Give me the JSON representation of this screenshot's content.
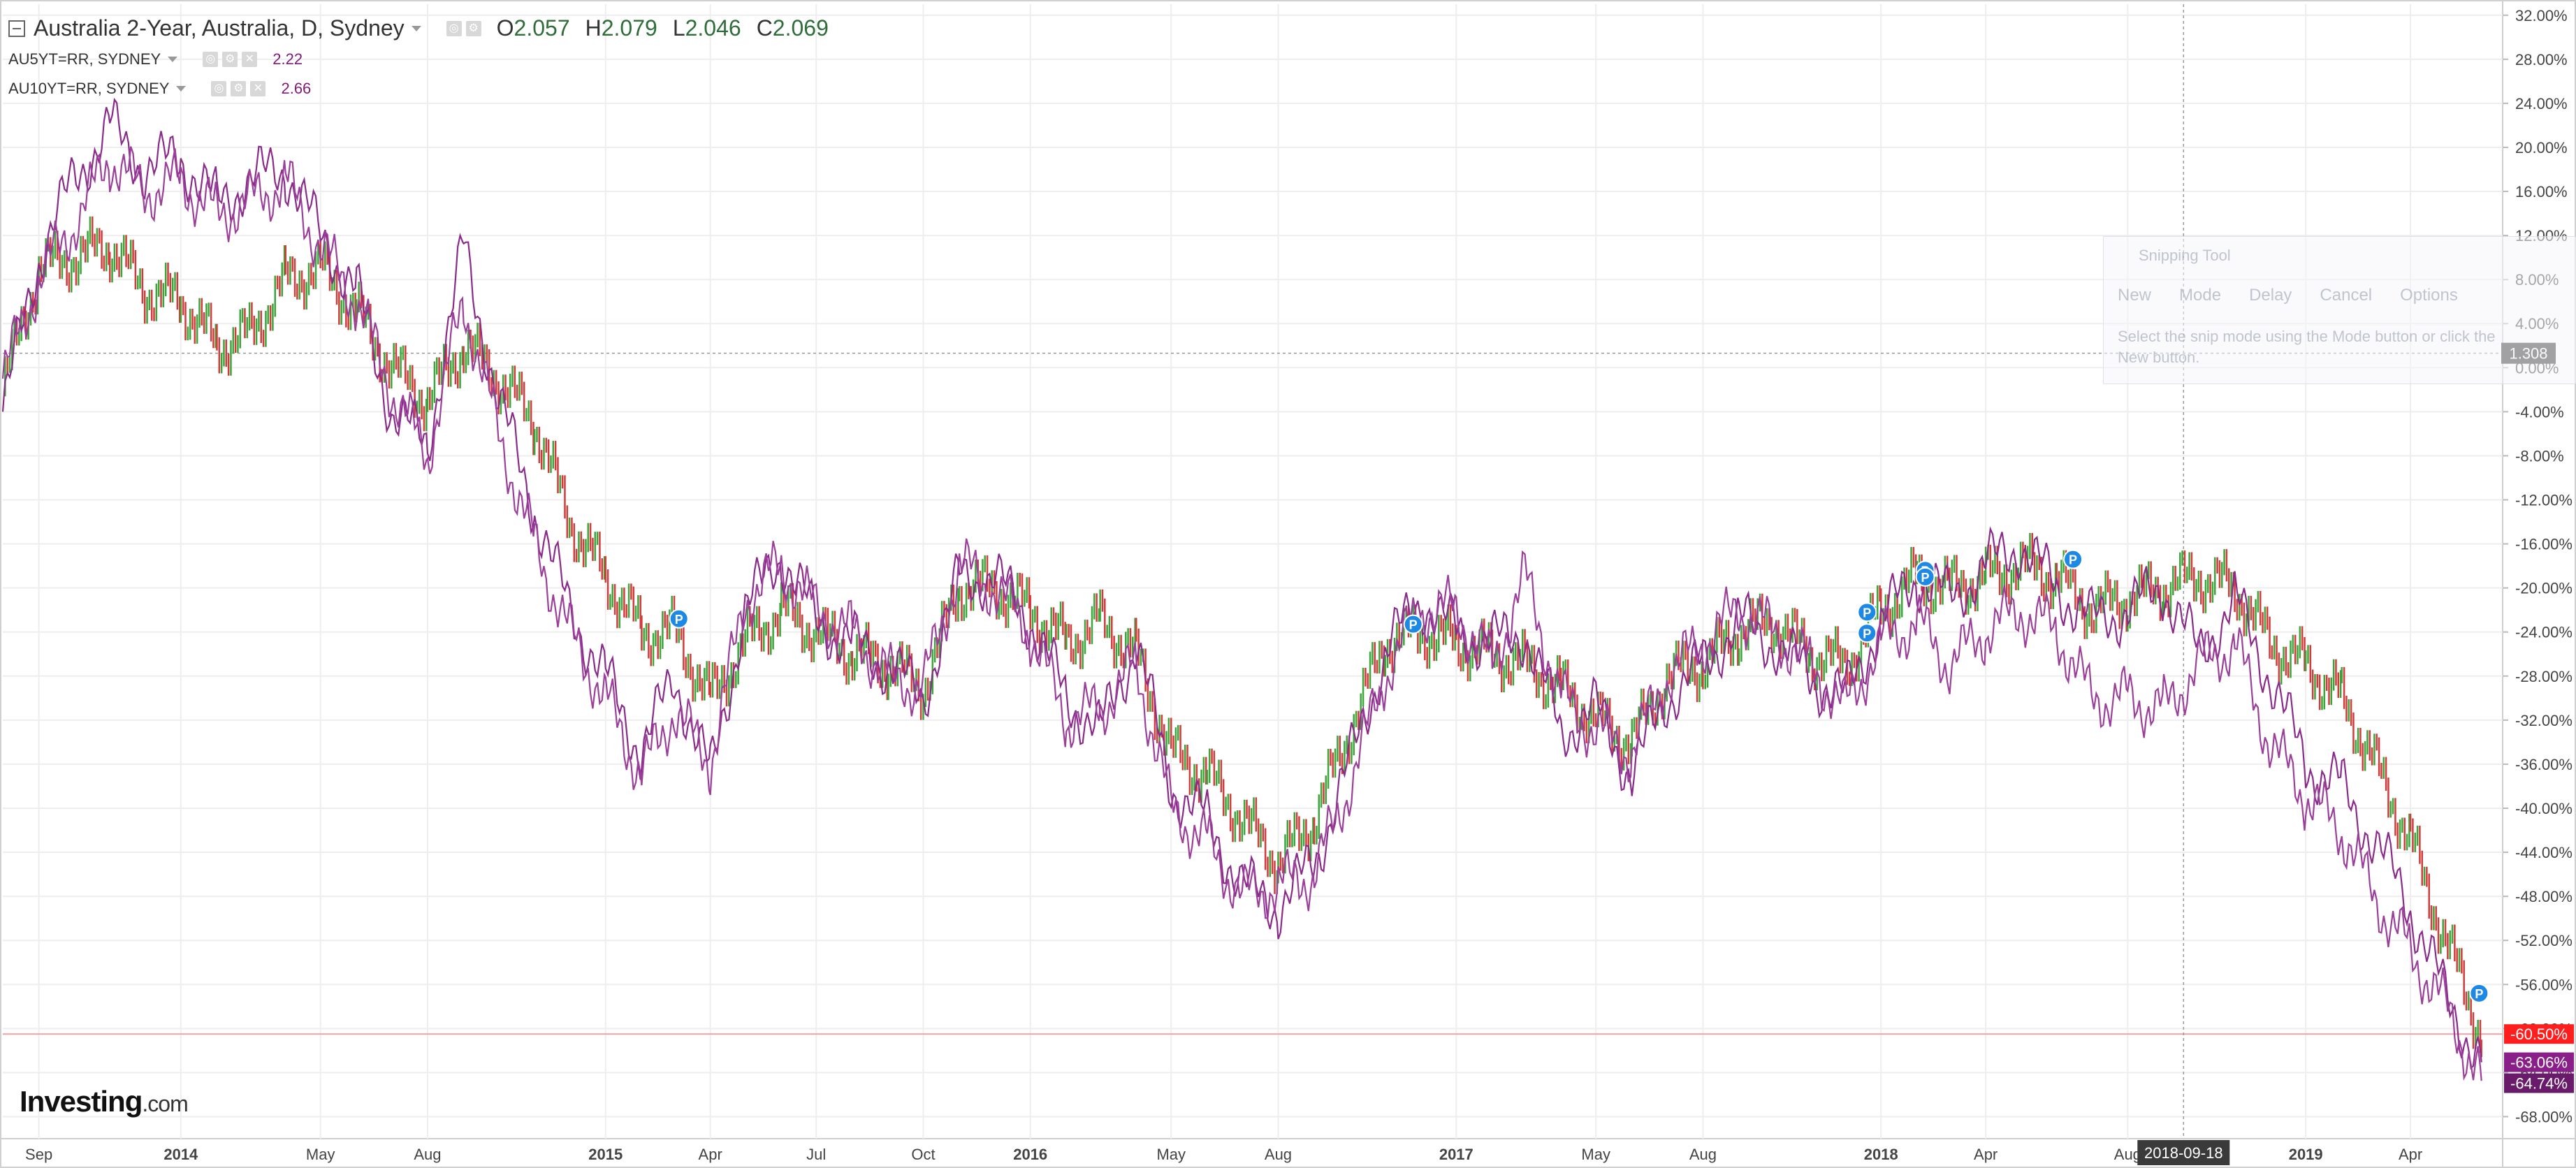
{
  "chart_data": {
    "type": "line",
    "title": "Australia 2-Year, Australia, D, Sydney",
    "ohlc": {
      "open_label": "O",
      "open": "2.057",
      "high_label": "H",
      "high": "2.079",
      "low_label": "L",
      "low": "2.046",
      "close_label": "C",
      "close": "2.069"
    },
    "compare": [
      {
        "name": "AU5YT=RR, SYDNEY",
        "value": "2.22"
      },
      {
        "name": "AU10YT=RR, SYDNEY",
        "value": "2.66"
      }
    ],
    "x_labels": [
      {
        "text": "Sep",
        "bold": false
      },
      {
        "text": "2014",
        "bold": true
      },
      {
        "text": "May",
        "bold": false
      },
      {
        "text": "Aug",
        "bold": false
      },
      {
        "text": "2015",
        "bold": true
      },
      {
        "text": "Apr",
        "bold": false
      },
      {
        "text": "Jul",
        "bold": false
      },
      {
        "text": "Oct",
        "bold": false
      },
      {
        "text": "2016",
        "bold": true
      },
      {
        "text": "May",
        "bold": false
      },
      {
        "text": "Aug",
        "bold": false
      },
      {
        "text": "2017",
        "bold": true
      },
      {
        "text": "May",
        "bold": false
      },
      {
        "text": "Aug",
        "bold": false
      },
      {
        "text": "2018",
        "bold": true
      },
      {
        "text": "Apr",
        "bold": false
      },
      {
        "text": "Aug",
        "bold": false
      },
      {
        "text": "2019",
        "bold": true
      },
      {
        "text": "Apr",
        "bold": false
      }
    ],
    "y_ticks": [
      "32.00%",
      "28.00%",
      "24.00%",
      "20.00%",
      "16.00%",
      "12.00%",
      "8.00%",
      "4.00%",
      "0.00%",
      "-4.00%",
      "-8.00%",
      "-12.00%",
      "-16.00%",
      "-20.00%",
      "-24.00%",
      "-28.00%",
      "-32.00%",
      "-36.00%",
      "-40.00%",
      "-44.00%",
      "-48.00%",
      "-52.00%",
      "-56.00%",
      "-60.00%",
      "-64.00%",
      "-68.00%"
    ],
    "ylim": [
      -70,
      33
    ],
    "x_range": [
      "2013-08-01",
      "2019-06-15"
    ],
    "crosshair": {
      "date": "2018-09-18",
      "date_label": "2018-09-18",
      "value": 1.308,
      "value_label": "1.308"
    },
    "price_labels": [
      {
        "text": "-60.50%",
        "value": -60.5,
        "color": "#ff1e1e"
      },
      {
        "text": "-63.06%",
        "value": -63.06,
        "color": "#8a1f8a"
      },
      {
        "text": "-64.74%",
        "value": -64.74,
        "color": "#6a1a6a"
      }
    ],
    "reference_line": {
      "value": -60.5,
      "color": "#f4a0a0"
    },
    "series": [
      {
        "name": "AU5YT=RR, SYDNEY",
        "color": "#8a2a8a",
        "points": [
          [
            "2013-08-01",
            -4
          ],
          [
            "2013-09-01",
            10
          ],
          [
            "2013-10-01",
            17
          ],
          [
            "2013-11-01",
            22
          ],
          [
            "2013-12-01",
            18
          ],
          [
            "2014-01-01",
            19
          ],
          [
            "2014-02-01",
            15
          ],
          [
            "2014-03-01",
            17
          ],
          [
            "2014-04-01",
            18
          ],
          [
            "2014-05-01",
            12
          ],
          [
            "2014-06-01",
            7
          ],
          [
            "2014-07-01",
            -4
          ],
          [
            "2014-08-01",
            -7
          ],
          [
            "2014-09-01",
            11
          ],
          [
            "2014-10-01",
            -3
          ],
          [
            "2014-11-01",
            -13
          ],
          [
            "2014-12-01",
            -22
          ],
          [
            "2015-01-01",
            -28
          ],
          [
            "2015-02-01",
            -35
          ],
          [
            "2015-03-01",
            -28
          ],
          [
            "2015-04-01",
            -37
          ],
          [
            "2015-05-01",
            -22
          ],
          [
            "2015-06-01",
            -17
          ],
          [
            "2015-07-01",
            -23
          ],
          [
            "2015-08-01",
            -25
          ],
          [
            "2015-09-01",
            -27
          ],
          [
            "2015-10-01",
            -30
          ],
          [
            "2015-11-01",
            -19
          ],
          [
            "2015-12-01",
            -19
          ],
          [
            "2016-01-01",
            -23
          ],
          [
            "2016-02-01",
            -30
          ],
          [
            "2016-03-01",
            -33
          ],
          [
            "2016-04-01",
            -25
          ],
          [
            "2016-05-01",
            -38
          ],
          [
            "2016-06-01",
            -41
          ],
          [
            "2016-07-01",
            -47
          ],
          [
            "2016-08-01",
            -49
          ],
          [
            "2016-09-01",
            -45
          ],
          [
            "2016-10-01",
            -36
          ],
          [
            "2016-11-01",
            -26
          ],
          [
            "2016-12-01",
            -21
          ],
          [
            "2017-01-01",
            -24
          ],
          [
            "2017-02-01",
            -25
          ],
          [
            "2017-03-01",
            -24
          ],
          [
            "2017-04-01",
            -33
          ],
          [
            "2017-05-01",
            -31
          ],
          [
            "2017-06-01",
            -37
          ],
          [
            "2017-07-01",
            -30
          ],
          [
            "2017-08-01",
            -27
          ],
          [
            "2017-09-01",
            -23
          ],
          [
            "2017-10-01",
            -25
          ],
          [
            "2017-11-01",
            -28
          ],
          [
            "2017-12-01",
            -30
          ],
          [
            "2018-01-01",
            -23
          ],
          [
            "2018-02-01",
            -19
          ],
          [
            "2018-03-01",
            -21
          ],
          [
            "2018-04-01",
            -18
          ],
          [
            "2018-05-01",
            -16
          ],
          [
            "2018-06-01",
            -20
          ],
          [
            "2018-07-01",
            -23
          ],
          [
            "2018-08-01",
            -22
          ],
          [
            "2018-09-01",
            -20
          ],
          [
            "2018-10-01",
            -26
          ],
          [
            "2018-11-01",
            -21
          ],
          [
            "2018-12-01",
            -28
          ],
          [
            "2019-01-01",
            -36
          ],
          [
            "2019-02-01",
            -38
          ],
          [
            "2019-03-01",
            -43
          ],
          [
            "2019-04-01",
            -49
          ],
          [
            "2019-05-01",
            -57
          ],
          [
            "2019-06-01",
            -63.06
          ]
        ]
      },
      {
        "name": "AU10YT=RR, SYDNEY",
        "color": "#9b3f9b",
        "points": [
          [
            "2013-08-01",
            -1
          ],
          [
            "2013-09-01",
            8
          ],
          [
            "2013-10-01",
            13
          ],
          [
            "2013-11-01",
            19
          ],
          [
            "2013-12-01",
            16
          ],
          [
            "2014-01-01",
            17
          ],
          [
            "2014-02-01",
            14
          ],
          [
            "2014-03-01",
            15
          ],
          [
            "2014-04-01",
            17
          ],
          [
            "2014-05-01",
            11
          ],
          [
            "2014-06-01",
            6
          ],
          [
            "2014-07-01",
            -2
          ],
          [
            "2014-08-01",
            -8
          ],
          [
            "2014-09-01",
            6
          ],
          [
            "2014-10-01",
            -6
          ],
          [
            "2014-11-01",
            -16
          ],
          [
            "2014-12-01",
            -24
          ],
          [
            "2015-01-01",
            -30
          ],
          [
            "2015-02-01",
            -37
          ],
          [
            "2015-03-01",
            -31
          ],
          [
            "2015-04-01",
            -36
          ],
          [
            "2015-05-01",
            -21
          ],
          [
            "2015-06-01",
            -18
          ],
          [
            "2015-07-01",
            -22
          ],
          [
            "2015-08-01",
            -24
          ],
          [
            "2015-09-01",
            -28
          ],
          [
            "2015-10-01",
            -29
          ],
          [
            "2015-11-01",
            -18
          ],
          [
            "2015-12-01",
            -20
          ],
          [
            "2016-01-01",
            -24
          ],
          [
            "2016-02-01",
            -32
          ],
          [
            "2016-03-01",
            -31
          ],
          [
            "2016-04-01",
            -27
          ],
          [
            "2016-05-01",
            -40
          ],
          [
            "2016-06-01",
            -43
          ],
          [
            "2016-07-01",
            -48
          ],
          [
            "2016-08-01",
            -47
          ],
          [
            "2016-09-01",
            -46
          ],
          [
            "2016-10-01",
            -38
          ],
          [
            "2016-11-01",
            -28
          ],
          [
            "2016-12-01",
            -22
          ],
          [
            "2017-01-01",
            -22
          ],
          [
            "2017-02-01",
            -27
          ],
          [
            "2017-03-01",
            -19
          ],
          [
            "2017-04-01",
            -30
          ],
          [
            "2017-05-01",
            -33
          ],
          [
            "2017-06-01",
            -35
          ],
          [
            "2017-07-01",
            -28
          ],
          [
            "2017-08-01",
            -25
          ],
          [
            "2017-09-01",
            -22
          ],
          [
            "2017-10-01",
            -24
          ],
          [
            "2017-11-01",
            -27
          ],
          [
            "2017-12-01",
            -31
          ],
          [
            "2018-01-01",
            -25
          ],
          [
            "2018-02-01",
            -23
          ],
          [
            "2018-03-01",
            -27
          ],
          [
            "2018-04-01",
            -24
          ],
          [
            "2018-05-01",
            -22
          ],
          [
            "2018-06-01",
            -24
          ],
          [
            "2018-07-01",
            -30
          ],
          [
            "2018-08-01",
            -30
          ],
          [
            "2018-09-01",
            -31
          ],
          [
            "2018-10-01",
            -27
          ],
          [
            "2018-11-01",
            -25
          ],
          [
            "2018-12-01",
            -34
          ],
          [
            "2019-01-01",
            -39
          ],
          [
            "2019-02-01",
            -42
          ],
          [
            "2019-03-01",
            -48
          ],
          [
            "2019-04-01",
            -53
          ],
          [
            "2019-05-01",
            -58
          ],
          [
            "2019-06-01",
            -64.74
          ]
        ]
      },
      {
        "name": "Australia 2-Year",
        "color_up": "#3aa63a",
        "color_down": "#d33a3a",
        "points": [
          [
            "2013-08-01",
            -2
          ],
          [
            "2013-09-01",
            9
          ],
          [
            "2013-10-01",
            10
          ],
          [
            "2013-11-01",
            11
          ],
          [
            "2013-12-01",
            7
          ],
          [
            "2014-01-01",
            6
          ],
          [
            "2014-02-01",
            2
          ],
          [
            "2014-03-01",
            3
          ],
          [
            "2014-04-01",
            8
          ],
          [
            "2014-05-01",
            9
          ],
          [
            "2014-06-01",
            5
          ],
          [
            "2014-07-01",
            0
          ],
          [
            "2014-08-01",
            -3
          ],
          [
            "2014-09-01",
            2
          ],
          [
            "2014-10-01",
            -1
          ],
          [
            "2014-11-01",
            -5
          ],
          [
            "2014-12-01",
            -14
          ],
          [
            "2015-01-01",
            -19
          ],
          [
            "2015-02-01",
            -24
          ],
          [
            "2015-03-01",
            -24
          ],
          [
            "2015-04-01",
            -30
          ],
          [
            "2015-05-01",
            -25
          ],
          [
            "2015-06-01",
            -22
          ],
          [
            "2015-07-01",
            -24
          ],
          [
            "2015-08-01",
            -26
          ],
          [
            "2015-09-01",
            -27
          ],
          [
            "2015-10-01",
            -29
          ],
          [
            "2015-11-01",
            -20
          ],
          [
            "2015-12-01",
            -20
          ],
          [
            "2016-01-01",
            -22
          ],
          [
            "2016-02-01",
            -25
          ],
          [
            "2016-03-01",
            -23
          ],
          [
            "2016-04-01",
            -26
          ],
          [
            "2016-05-01",
            -35
          ],
          [
            "2016-06-01",
            -37
          ],
          [
            "2016-07-01",
            -41
          ],
          [
            "2016-08-01",
            -45
          ],
          [
            "2016-09-01",
            -41
          ],
          [
            "2016-10-01",
            -33
          ],
          [
            "2016-11-01",
            -25
          ],
          [
            "2016-12-01",
            -24
          ],
          [
            "2017-01-01",
            -25
          ],
          [
            "2017-02-01",
            -26
          ],
          [
            "2017-03-01",
            -27
          ],
          [
            "2017-04-01",
            -29
          ],
          [
            "2017-05-01",
            -32
          ],
          [
            "2017-06-01",
            -34
          ],
          [
            "2017-07-01",
            -28
          ],
          [
            "2017-08-01",
            -27
          ],
          [
            "2017-09-01",
            -24
          ],
          [
            "2017-10-01",
            -23
          ],
          [
            "2017-11-01",
            -26
          ],
          [
            "2017-12-01",
            -27
          ],
          [
            "2018-01-01",
            -22
          ],
          [
            "2018-02-01",
            -19
          ],
          [
            "2018-03-01",
            -20
          ],
          [
            "2018-04-01",
            -19
          ],
          [
            "2018-05-01",
            -18
          ],
          [
            "2018-06-01",
            -19
          ],
          [
            "2018-07-01",
            -22
          ],
          [
            "2018-08-01",
            -21
          ],
          [
            "2018-09-01",
            -20
          ],
          [
            "2018-10-01",
            -19
          ],
          [
            "2018-11-01",
            -20
          ],
          [
            "2018-12-01",
            -25
          ],
          [
            "2019-01-01",
            -27
          ],
          [
            "2019-02-01",
            -30
          ],
          [
            "2019-03-01",
            -36
          ],
          [
            "2019-04-01",
            -43
          ],
          [
            "2019-05-01",
            -52
          ],
          [
            "2019-06-01",
            -60.5
          ]
        ]
      }
    ],
    "events": [
      {
        "label": "P",
        "date": "2015-03-05",
        "value": -22.8
      },
      {
        "label": "P",
        "date": "2016-11-25",
        "value": -23.3
      },
      {
        "label": "P",
        "date": "2017-12-20",
        "value": -22.2
      },
      {
        "label": "P",
        "date": "2017-12-20",
        "value": -24.1
      },
      {
        "label": "P",
        "date": "2018-02-08",
        "value": -18.4
      },
      {
        "label": "P",
        "date": "2018-02-08",
        "value": -19.0
      },
      {
        "label": "P",
        "date": "2018-06-15",
        "value": -17.4
      },
      {
        "label": "P",
        "date": "2019-05-30",
        "value": -56.8
      }
    ],
    "grid": true,
    "legend": "top-left"
  },
  "ui": {
    "logo": {
      "brand": "Investing",
      "suffix": ".com"
    },
    "snipping_tool": {
      "title": "Snipping Tool",
      "buttons": [
        "New",
        "Mode",
        "Delay",
        "Cancel",
        "Options"
      ],
      "hint": "Select the snip mode using the Mode button or click the New button."
    }
  }
}
